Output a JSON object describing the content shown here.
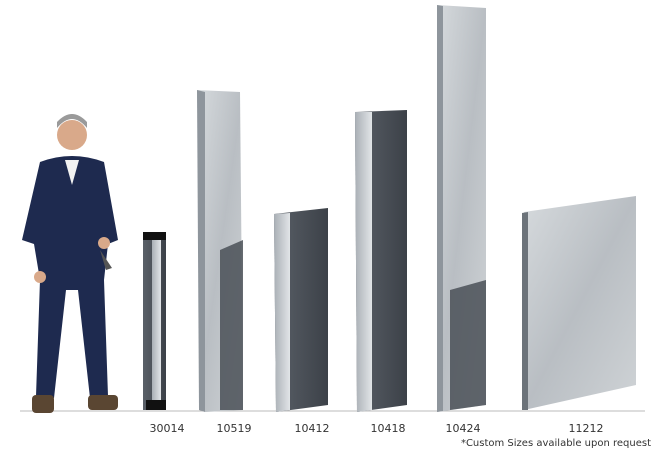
{
  "products": [
    {
      "label": "30014"
    },
    {
      "label": "10519"
    },
    {
      "label": "10412"
    },
    {
      "label": "10418"
    },
    {
      "label": "10424"
    },
    {
      "label": "11212"
    }
  ],
  "footnote": "*Custom Sizes available upon request"
}
